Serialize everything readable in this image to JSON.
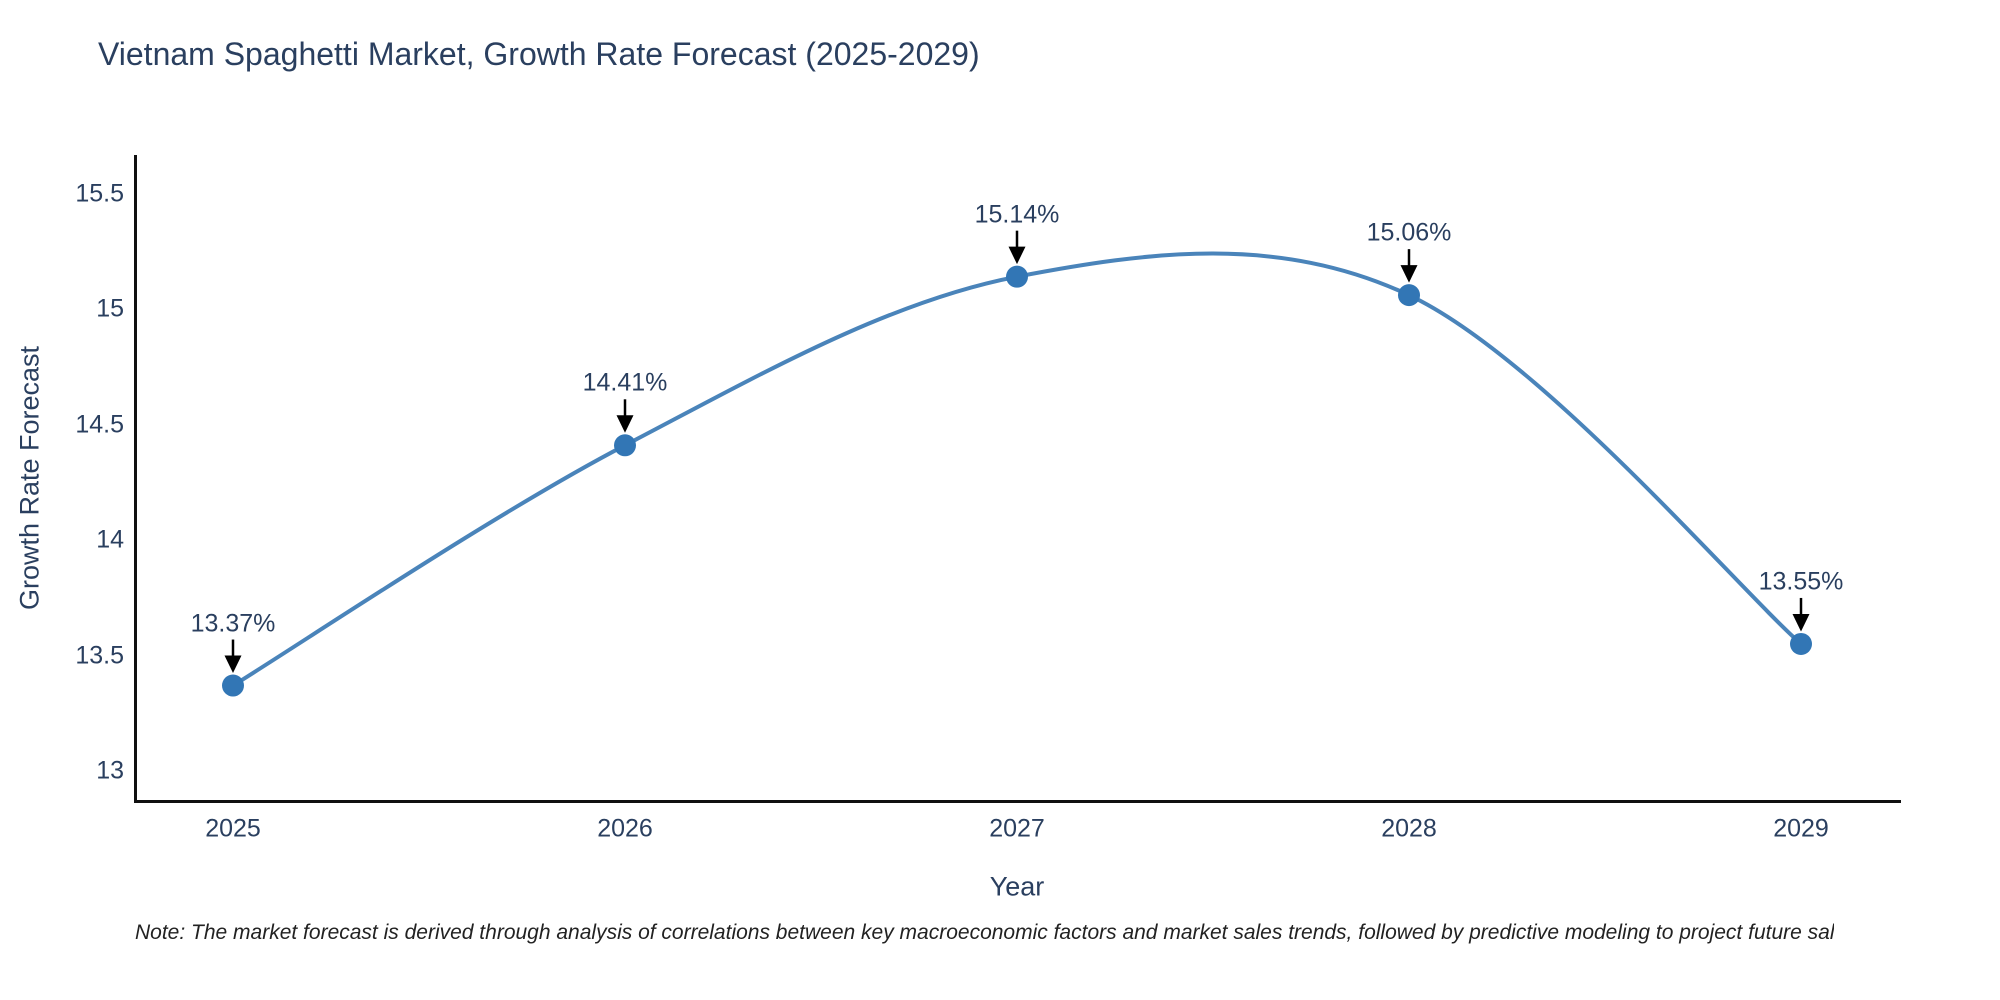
{
  "chart_data": {
    "type": "line",
    "title": "Vietnam Spaghetti Market, Growth Rate Forecast (2025-2029)",
    "xlabel": "Year",
    "ylabel": "Growth Rate Forecast",
    "x": [
      2025,
      2026,
      2027,
      2028,
      2029
    ],
    "x_tick_labels": [
      "2025",
      "2026",
      "2027",
      "2028",
      "2029"
    ],
    "series": [
      {
        "name": "Growth Rate Forecast",
        "values": [
          13.37,
          14.41,
          15.14,
          15.06,
          13.55
        ],
        "point_labels": [
          "13.37%",
          "14.41%",
          "15.14%",
          "15.06%",
          "13.55%"
        ]
      }
    ],
    "yticks": [
      13,
      13.5,
      14,
      14.5,
      15,
      15.5
    ],
    "ytick_labels": [
      "13",
      "13.5",
      "14",
      "14.5",
      "15",
      "15.5"
    ],
    "ylim": [
      12.87,
      15.67
    ],
    "xlim": [
      2024.74,
      2029.26
    ],
    "line_shape": "spline",
    "marker_style": "circle",
    "grid": false,
    "legend_position": "none",
    "annotation_style": "value label above point with black down arrow",
    "colors": {
      "line": "#4a84ba",
      "marker": "#3276b5",
      "arrow": "#000000",
      "axis_line": "#101010",
      "text": "#2a3f5f",
      "note_text": "#222222",
      "background": "#ffffff"
    }
  },
  "note": "Note: The market forecast is derived through analysis of correlations between key macroeconomic factors and market sales trends, followed by predictive modeling to project future sal"
}
